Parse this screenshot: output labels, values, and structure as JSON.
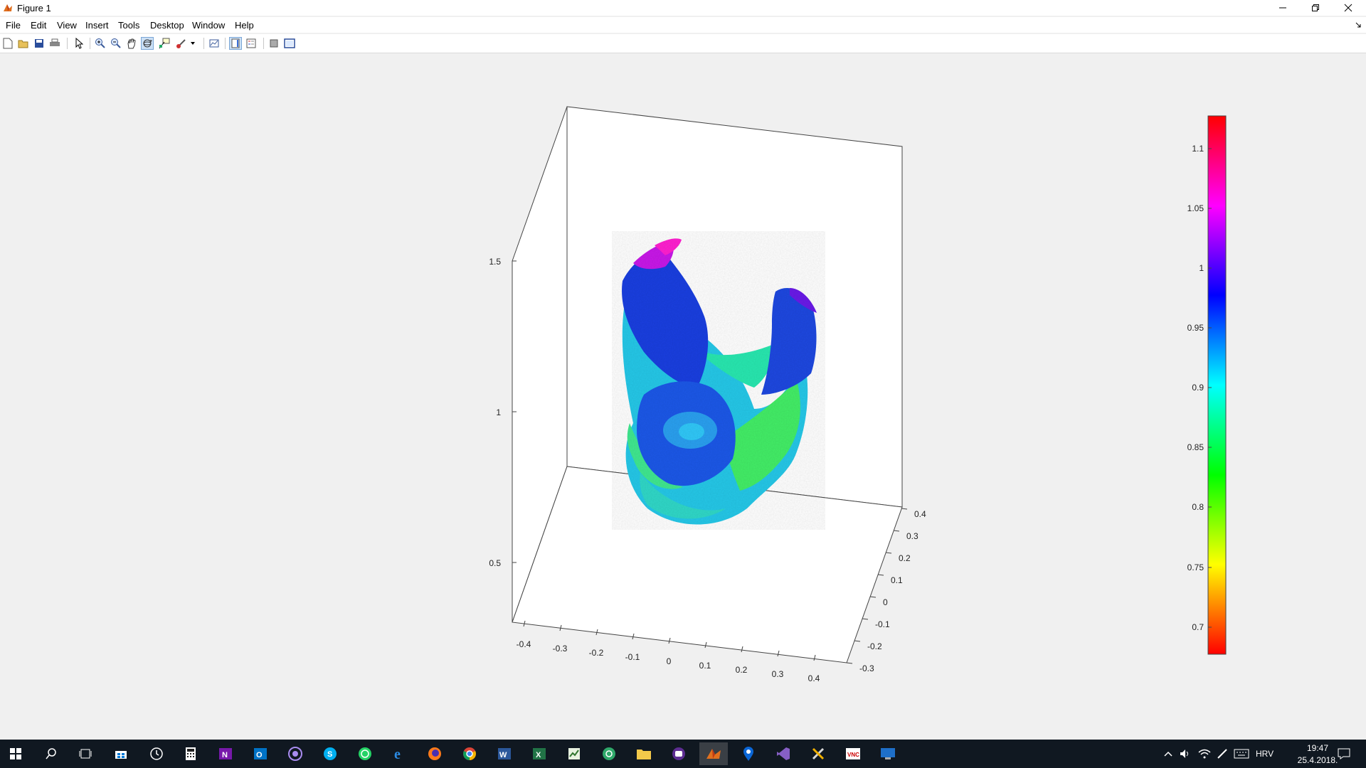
{
  "window": {
    "title": "Figure 1"
  },
  "menu": [
    "File",
    "Edit",
    "View",
    "Insert",
    "Tools",
    "Desktop",
    "Window",
    "Help"
  ],
  "toolbar_icons": [
    "new-figure-icon",
    "open-file-icon",
    "save-icon",
    "print-icon",
    "select-arrow-icon",
    "zoom-in-icon",
    "zoom-out-icon",
    "pan-hand-icon",
    "rotate-3d-icon",
    "data-cursor-icon",
    "brush-icon",
    "brush-dropdown-icon",
    "link-plot-icon",
    "colorbar-icon",
    "legend-icon",
    "hide-plot-tools-icon",
    "show-plot-tools-icon"
  ],
  "axes": {
    "z_ticks": [
      "0.5",
      "1",
      "1.5"
    ],
    "x_ticks": [
      "-0.4",
      "-0.3",
      "-0.2",
      "-0.1",
      "0",
      "0.1",
      "0.2",
      "0.3",
      "0.4"
    ],
    "y_ticks": [
      "-0.3",
      "-0.2",
      "-0.1",
      "0",
      "0.1",
      "0.2",
      "0.3",
      "0.4"
    ],
    "z_range": [
      0.3,
      1.7
    ],
    "x_range": [
      -0.45,
      0.45
    ],
    "y_range": [
      -0.35,
      0.42
    ]
  },
  "colorbar": {
    "ticks": [
      "0.7",
      "0.75",
      "0.8",
      "0.85",
      "0.9",
      "0.95",
      "1",
      "1.05",
      "1.1"
    ],
    "range": [
      0.67,
      1.12
    ],
    "colormap": "hsv (red-yellow-green-cyan-blue-magenta-red)"
  },
  "taskbar": {
    "icons": [
      "windows-start-icon",
      "search-icon",
      "task-view-icon",
      "store-icon",
      "clock-app-icon",
      "calculator-icon",
      "onenote-icon",
      "outlook-icon",
      "viber-icon",
      "skype-icon",
      "whatsapp-icon",
      "edge-icon",
      "firefox-icon",
      "chrome-icon",
      "word-icon",
      "excel-icon",
      "project-icon",
      "network-app-icon",
      "file-explorer-icon",
      "purple-app-icon",
      "matlab-icon",
      "maps-icon",
      "visual-studio-icon",
      "tools-icon",
      "vnc-icon",
      "remote-desktop-icon"
    ],
    "tray": {
      "language": "HRV",
      "time": "19:47",
      "date": "25.4.2018."
    }
  }
}
